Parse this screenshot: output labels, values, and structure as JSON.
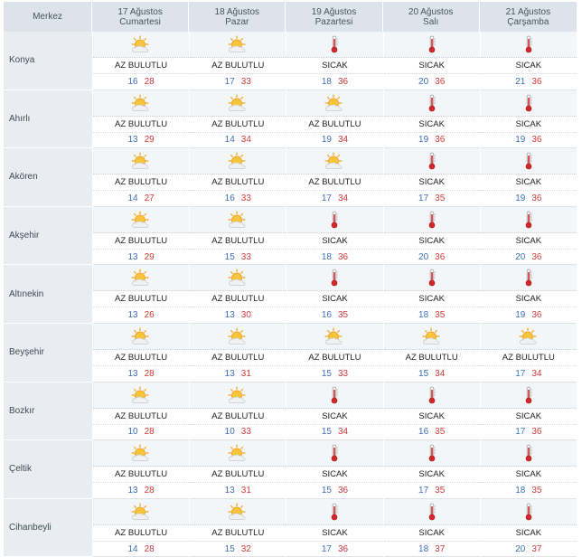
{
  "header": {
    "merkez": "Merkez",
    "days": [
      {
        "date": "17 Ağustos",
        "weekday": "Cumartesi"
      },
      {
        "date": "18 Ağustos",
        "weekday": "Pazar"
      },
      {
        "date": "19 Ağustos",
        "weekday": "Pazartesi"
      },
      {
        "date": "20 Ağustos",
        "weekday": "Salı"
      },
      {
        "date": "21 Ağustos",
        "weekday": "Çarşamba"
      }
    ]
  },
  "icons": {
    "AZ BULUTLU": "partly-cloudy-icon",
    "SICAK": "thermometer-hot-icon"
  },
  "rows": [
    {
      "city": "Konya",
      "days": [
        {
          "desc": "AZ BULUTLU",
          "min": "16",
          "max": "28"
        },
        {
          "desc": "AZ BULUTLU",
          "min": "17",
          "max": "33"
        },
        {
          "desc": "SICAK",
          "min": "18",
          "max": "36"
        },
        {
          "desc": "SICAK",
          "min": "20",
          "max": "36"
        },
        {
          "desc": "SICAK",
          "min": "21",
          "max": "36"
        }
      ]
    },
    {
      "city": "Ahırlı",
      "days": [
        {
          "desc": "AZ BULUTLU",
          "min": "13",
          "max": "29"
        },
        {
          "desc": "AZ BULUTLU",
          "min": "14",
          "max": "34"
        },
        {
          "desc": "AZ BULUTLU",
          "min": "19",
          "max": "34"
        },
        {
          "desc": "SICAK",
          "min": "19",
          "max": "36"
        },
        {
          "desc": "SICAK",
          "min": "19",
          "max": "36"
        }
      ]
    },
    {
      "city": "Akören",
      "days": [
        {
          "desc": "AZ BULUTLU",
          "min": "14",
          "max": "27"
        },
        {
          "desc": "AZ BULUTLU",
          "min": "16",
          "max": "33"
        },
        {
          "desc": "AZ BULUTLU",
          "min": "17",
          "max": "34"
        },
        {
          "desc": "SICAK",
          "min": "17",
          "max": "35"
        },
        {
          "desc": "SICAK",
          "min": "19",
          "max": "36"
        }
      ]
    },
    {
      "city": "Akşehir",
      "days": [
        {
          "desc": "AZ BULUTLU",
          "min": "13",
          "max": "29"
        },
        {
          "desc": "AZ BULUTLU",
          "min": "15",
          "max": "33"
        },
        {
          "desc": "SICAK",
          "min": "18",
          "max": "36"
        },
        {
          "desc": "SICAK",
          "min": "20",
          "max": "36"
        },
        {
          "desc": "SICAK",
          "min": "20",
          "max": "36"
        }
      ]
    },
    {
      "city": "Altınekin",
      "days": [
        {
          "desc": "AZ BULUTLU",
          "min": "13",
          "max": "26"
        },
        {
          "desc": "AZ BULUTLU",
          "min": "13",
          "max": "30"
        },
        {
          "desc": "SICAK",
          "min": "16",
          "max": "35"
        },
        {
          "desc": "SICAK",
          "min": "18",
          "max": "35"
        },
        {
          "desc": "SICAK",
          "min": "19",
          "max": "36"
        }
      ]
    },
    {
      "city": "Beyşehir",
      "days": [
        {
          "desc": "AZ BULUTLU",
          "min": "13",
          "max": "28"
        },
        {
          "desc": "AZ BULUTLU",
          "min": "13",
          "max": "31"
        },
        {
          "desc": "AZ BULUTLU",
          "min": "15",
          "max": "33"
        },
        {
          "desc": "AZ BULUTLU",
          "min": "15",
          "max": "34"
        },
        {
          "desc": "AZ BULUTLU",
          "min": "17",
          "max": "34"
        }
      ]
    },
    {
      "city": "Bozkır",
      "days": [
        {
          "desc": "AZ BULUTLU",
          "min": "10",
          "max": "28"
        },
        {
          "desc": "AZ BULUTLU",
          "min": "10",
          "max": "33"
        },
        {
          "desc": "SICAK",
          "min": "15",
          "max": "34"
        },
        {
          "desc": "SICAK",
          "min": "16",
          "max": "35"
        },
        {
          "desc": "SICAK",
          "min": "17",
          "max": "36"
        }
      ]
    },
    {
      "city": "Çeltik",
      "days": [
        {
          "desc": "AZ BULUTLU",
          "min": "13",
          "max": "28"
        },
        {
          "desc": "AZ BULUTLU",
          "min": "13",
          "max": "31"
        },
        {
          "desc": "SICAK",
          "min": "15",
          "max": "36"
        },
        {
          "desc": "SICAK",
          "min": "17",
          "max": "35"
        },
        {
          "desc": "SICAK",
          "min": "18",
          "max": "35"
        }
      ]
    },
    {
      "city": "Cihanbeyli",
      "days": [
        {
          "desc": "AZ BULUTLU",
          "min": "14",
          "max": "28"
        },
        {
          "desc": "AZ BULUTLU",
          "min": "15",
          "max": "32"
        },
        {
          "desc": "SICAK",
          "min": "17",
          "max": "36"
        },
        {
          "desc": "SICAK",
          "min": "18",
          "max": "37"
        },
        {
          "desc": "SICAK",
          "min": "20",
          "max": "37"
        }
      ]
    }
  ]
}
